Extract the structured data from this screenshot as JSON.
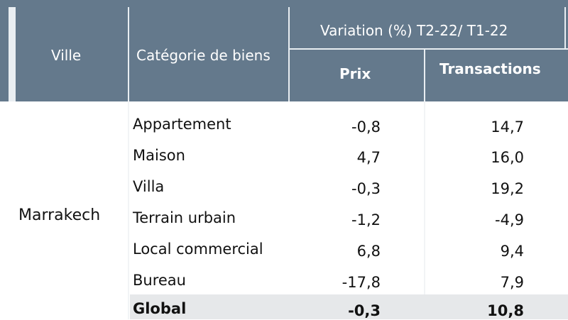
{
  "header": {
    "ville": "Ville",
    "categorie": "Catégorie de biens",
    "variation": "Variation (%) T2-22/ T1-22",
    "prix": "Prix",
    "transactions": "Transactions"
  },
  "city": "Marrakech",
  "rows": [
    {
      "categorie": "Appartement",
      "prix": "-0,8",
      "transactions": "14,7"
    },
    {
      "categorie": "Maison",
      "prix": "4,7",
      "transactions": "16,0"
    },
    {
      "categorie": "Villa",
      "prix": "-0,3",
      "transactions": "19,2"
    },
    {
      "categorie": "Terrain urbain",
      "prix": "-1,2",
      "transactions": "-4,9"
    },
    {
      "categorie": "Local commercial",
      "prix": "6,8",
      "transactions": "9,4"
    },
    {
      "categorie": "Bureau",
      "prix": "-17,8",
      "transactions": "7,9"
    }
  ],
  "global": {
    "categorie": "Global",
    "prix": "-0,3",
    "transactions": "10,8"
  },
  "colors": {
    "header_bg": "#64798c",
    "global_bg": "#e6e8ea"
  }
}
